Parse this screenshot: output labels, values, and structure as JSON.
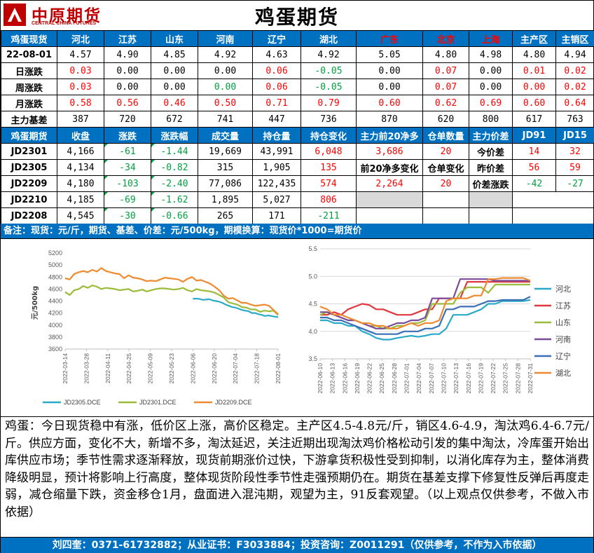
{
  "header": {
    "logo_cn": "中原期货",
    "logo_en": "CENTRAL CHINA FUTURES",
    "title": "鸡蛋期货"
  },
  "colors": {
    "header_bg": "#0070c0",
    "up": "#ff0000",
    "down": "#00a040",
    "logo": "#c00000"
  },
  "spot_table": {
    "corner": "鸡蛋现货",
    "columns": [
      {
        "label": "河北",
        "red": false
      },
      {
        "label": "江苏",
        "red": false
      },
      {
        "label": "山东",
        "red": false
      },
      {
        "label": "河南",
        "red": false
      },
      {
        "label": "辽宁",
        "red": false
      },
      {
        "label": "湖北",
        "red": false
      },
      {
        "label": "广东",
        "red": true
      },
      {
        "label": "北京",
        "red": true
      },
      {
        "label": "上海",
        "red": true
      },
      {
        "label": "主产区",
        "red": false
      },
      {
        "label": "主销区",
        "red": false
      }
    ],
    "rows": [
      {
        "label": "22-08-01",
        "values": [
          "4.57",
          "4.90",
          "4.85",
          "4.92",
          "4.63",
          "4.92",
          "5.05",
          "4.80",
          "4.98",
          "4.80",
          "4.94"
        ],
        "dirs": [
          "flat",
          "flat",
          "flat",
          "flat",
          "flat",
          "flat",
          "flat",
          "flat",
          "flat",
          "flat",
          "flat"
        ]
      },
      {
        "label": "日涨跌",
        "values": [
          "0.03",
          "0.00",
          "0.00",
          "0.00",
          "0.06",
          "-0.05",
          "0.00",
          "0.07",
          "0.00",
          "0.01",
          "0.02"
        ],
        "dirs": [
          "up",
          "flat",
          "flat",
          "flat",
          "up",
          "dn",
          "flat",
          "up",
          "flat",
          "up",
          "up"
        ]
      },
      {
        "label": "周涨跌",
        "values": [
          "0.03",
          "0.00",
          "0.00",
          "0.00",
          "0.06",
          "-0.05",
          "0.00",
          "0.07",
          "0.00",
          "0.00",
          "0.02"
        ],
        "dirs": [
          "up",
          "flat",
          "flat",
          "dn",
          "up",
          "dn",
          "flat",
          "up",
          "flat",
          "up",
          "up"
        ]
      },
      {
        "label": "月涨跌",
        "values": [
          "0.58",
          "0.56",
          "0.46",
          "0.50",
          "0.71",
          "0.79",
          "0.60",
          "0.62",
          "0.69",
          "0.60",
          "0.64"
        ],
        "dirs": [
          "up",
          "up",
          "up",
          "up",
          "up",
          "up",
          "up",
          "up",
          "up",
          "up",
          "up"
        ]
      },
      {
        "label": "主力基差",
        "values": [
          "387",
          "720",
          "672",
          "741",
          "447",
          "736",
          "870",
          "620",
          "800",
          "617",
          "763"
        ],
        "dirs": [
          "flat",
          "flat",
          "flat",
          "flat",
          "flat",
          "flat",
          "flat",
          "flat",
          "flat",
          "flat",
          "flat"
        ]
      }
    ]
  },
  "futures_table": {
    "headers": [
      "鸡蛋期货",
      "收盘",
      "涨跌",
      "涨跌幅",
      "成交量",
      "持仓量",
      "持仓变化",
      "主力前20净多",
      "仓单数量",
      "主力价差",
      "JD91",
      "JD15"
    ],
    "rows": [
      {
        "contract": "JD2301",
        "close": "4,166",
        "chg": "-61",
        "pct": "-1.44",
        "vol": "19,669",
        "oi": "43,991",
        "oi_chg": "6,048",
        "oi_chg_dir": "up"
      },
      {
        "contract": "JD2305",
        "close": "4,134",
        "chg": "-34",
        "pct": "-0.82",
        "vol": "315",
        "oi": "1,905",
        "oi_chg": "135",
        "oi_chg_dir": "up"
      },
      {
        "contract": "JD2209",
        "close": "4,180",
        "chg": "-103",
        "pct": "-2.40",
        "vol": "77,086",
        "oi": "122,435",
        "oi_chg": "574",
        "oi_chg_dir": "up"
      },
      {
        "contract": "JD2210",
        "close": "4,185",
        "chg": "-69",
        "pct": "-1.62",
        "vol": "1,895",
        "oi": "5,027",
        "oi_chg": "806",
        "oi_chg_dir": "up"
      },
      {
        "contract": "JD2208",
        "close": "4,545",
        "chg": "-30",
        "pct": "-0.66",
        "vol": "265",
        "oi": "171",
        "oi_chg": "-211",
        "oi_chg_dir": "dn"
      }
    ],
    "net_long": "3,686",
    "warrants": "20",
    "net_long_chg_label": "前20净多变化",
    "warrant_chg_label": "仓单变化",
    "net_long_chg": "2,264",
    "warrant_chg": "20",
    "spread_rows": [
      {
        "label": "今价差",
        "jd91": "14",
        "jd15": "32",
        "dir": "up"
      },
      {
        "label": "昨价差",
        "jd91": "56",
        "jd15": "59",
        "dir": "up"
      },
      {
        "label": "价差涨跌",
        "jd91": "-42",
        "jd15": "-27",
        "dir": "dn"
      }
    ]
  },
  "note": "备注：现货：元/斤，期货、基差、价差：元/500kg，期模换算：现货价*1000=期货价",
  "chart_data": [
    {
      "type": "line",
      "ylabel": "元/500kg",
      "ylim": [
        3600,
        5200
      ],
      "yticks": [
        "5200",
        "5000",
        "4800",
        "4600",
        "4400",
        "4200",
        "4000",
        "3800",
        "3600"
      ],
      "xticks": [
        "2022-03-14",
        "2022-03-28",
        "2022-04-11",
        "2022-04-25",
        "2022-05-09",
        "2022-05-23",
        "2022-06-06",
        "2022-06-20",
        "2022-07-04",
        "2022-07-18",
        "2022-08-01"
      ],
      "series": [
        {
          "name": "JD2305.DCE",
          "color": "#2aa9c9",
          "start": 6.0,
          "values": [
            4440,
            4440,
            4435,
            4420,
            4425,
            4430,
            4410,
            4400,
            4390,
            4370,
            4340,
            4320,
            4300,
            4290,
            4270,
            4250,
            4240,
            4230,
            4200,
            4200,
            4180,
            4170,
            4150,
            4160,
            4150,
            4140,
            4134
          ]
        },
        {
          "name": "JD2301.DCE",
          "color": "#9bbb3a",
          "start": 0,
          "values": [
            4550,
            4500,
            4580,
            4600,
            4650,
            4620,
            4660,
            4640,
            4600,
            4620,
            4610,
            4600,
            4580,
            4590,
            4600,
            4560,
            4570,
            4590,
            4560,
            4580,
            4600,
            4610,
            4610,
            4600,
            4590,
            4600,
            4620,
            4580,
            4560,
            4600,
            4580,
            4570,
            4560,
            4540,
            4500,
            4460,
            4380,
            4360,
            4340,
            4300,
            4290,
            4260,
            4260,
            4220,
            4240,
            4230,
            4240,
            4166
          ]
        },
        {
          "name": "JD2209.DCE",
          "color": "#ee8a2f",
          "start": 0,
          "values": [
            4780,
            4760,
            4850,
            4880,
            4900,
            4880,
            4920,
            4890,
            4950,
            4900,
            4880,
            4860,
            4850,
            4780,
            4830,
            4790,
            4780,
            4760,
            4730,
            4740,
            4730,
            4760,
            4790,
            4780,
            4770,
            4760,
            4720,
            4770,
            4800,
            4740,
            4750,
            4720,
            4690,
            4640,
            4580,
            4490,
            4440,
            4450,
            4410,
            4370,
            4370,
            4340,
            4320,
            4330,
            4340,
            4320,
            4250,
            4180
          ]
        }
      ]
    },
    {
      "type": "line",
      "ylim": [
        3.5,
        5.5
      ],
      "yticks": [
        "5.5",
        "5.0",
        "4.5",
        "4.0",
        "3.5"
      ],
      "xticks": [
        "2022-06-10",
        "2022-06-13",
        "2022-06-16",
        "2022-06-19",
        "2022-06-22",
        "2022-06-25",
        "2022-06-28",
        "2022-07-01",
        "2022-07-04",
        "2022-07-07",
        "2022-07-10",
        "2022-07-13",
        "2022-07-16",
        "2022-07-19",
        "2022-07-22",
        "2022-07-25",
        "2022-07-28",
        "2022-07-31"
      ],
      "series": [
        {
          "name": "河北",
          "color": "#2aa9c9",
          "values": [
            4.2,
            4.2,
            4.15,
            4.15,
            4.1,
            4.1,
            4.0,
            3.95,
            3.88,
            3.85,
            3.85,
            3.88,
            3.9,
            3.92,
            3.9,
            3.92,
            3.95,
            3.95,
            4.05,
            4.3,
            4.3,
            4.3,
            4.35,
            4.4,
            4.5,
            4.5,
            4.55,
            4.55,
            4.55,
            4.55,
            4.57
          ]
        },
        {
          "name": "江苏",
          "color": "#e0383e",
          "values": [
            4.3,
            4.3,
            4.35,
            4.3,
            4.4,
            4.45,
            4.5,
            4.48,
            4.4,
            4.4,
            4.35,
            4.3,
            4.3,
            4.3,
            4.35,
            4.4,
            4.4,
            4.6,
            4.6,
            4.6,
            4.6,
            4.9,
            4.9,
            4.9,
            4.9,
            4.9,
            4.9,
            4.9,
            4.9,
            4.9,
            4.9
          ]
        },
        {
          "name": "山东",
          "color": "#9bbb3a",
          "values": [
            4.3,
            4.35,
            4.3,
            4.25,
            4.2,
            4.2,
            4.15,
            4.1,
            4.1,
            4.05,
            4.05,
            4.1,
            4.1,
            4.15,
            4.15,
            4.2,
            4.5,
            4.5,
            4.5,
            4.5,
            4.7,
            4.8,
            4.8,
            4.8,
            4.7,
            4.85,
            4.85,
            4.85,
            4.85,
            4.85,
            4.85
          ]
        },
        {
          "name": "河南",
          "color": "#7a4a9b",
          "values": [
            4.35,
            4.35,
            4.3,
            4.25,
            4.2,
            4.2,
            4.15,
            4.1,
            4.05,
            4.05,
            4.1,
            4.15,
            4.15,
            4.2,
            4.2,
            4.25,
            4.6,
            4.6,
            4.6,
            4.6,
            4.95,
            4.95,
            4.95,
            4.95,
            4.95,
            4.92,
            4.92,
            4.92,
            4.92,
            4.92,
            4.92
          ]
        },
        {
          "name": "辽宁",
          "color": "#3b6fb5",
          "values": [
            4.25,
            4.25,
            4.2,
            4.2,
            4.15,
            4.1,
            4.05,
            4.0,
            3.95,
            3.95,
            3.95,
            3.95,
            4.0,
            4.0,
            4.0,
            4.05,
            4.05,
            4.1,
            4.4,
            4.4,
            4.45,
            4.45,
            4.45,
            4.5,
            4.55,
            4.55,
            4.57,
            4.57,
            4.57,
            4.57,
            4.63
          ]
        },
        {
          "name": "湖北",
          "color": "#ee8a2f",
          "values": [
            4.45,
            4.4,
            4.3,
            4.3,
            4.25,
            4.2,
            4.15,
            4.15,
            4.1,
            4.1,
            4.05,
            4.05,
            4.1,
            4.15,
            4.1,
            4.15,
            4.15,
            4.2,
            4.55,
            4.6,
            4.6,
            4.6,
            4.65,
            4.65,
            4.95,
            4.95,
            4.97,
            4.97,
            4.97,
            4.97,
            4.92
          ]
        }
      ]
    }
  ],
  "commentary": "鸡蛋：今日现货稳中有涨，低价区上涨，高价区稳定。主产区4.5-4.8元/斤，销区4.6-4.9，淘汰鸡6.4-6.7元/斤。供应方面，变化不大，新增不多，淘汰延迟，关注近期出现淘汰鸡价格松动引发的集中淘汰，冷库蛋开始出库供应市场；季节性需求逐渐释放，现货前期涨价过快，下游拿货积极性受到抑制，以消化库存为主，整体消费降级明显，预计将影响上行高度，整体现货阶段性季节性走强预期仍在。期货在基差支撑下修复性反弹后再度走弱，减仓缩量下跌，资金移仓1月，盘面进入混沌期，观望为主，91反套观望。（以上观点仅供参考，不做入市依据）",
  "footer": "刘四奎：0371-61732882；从业证书：F3033884；投资咨询：Z0011291（仅供参考，不作为入市依据）"
}
